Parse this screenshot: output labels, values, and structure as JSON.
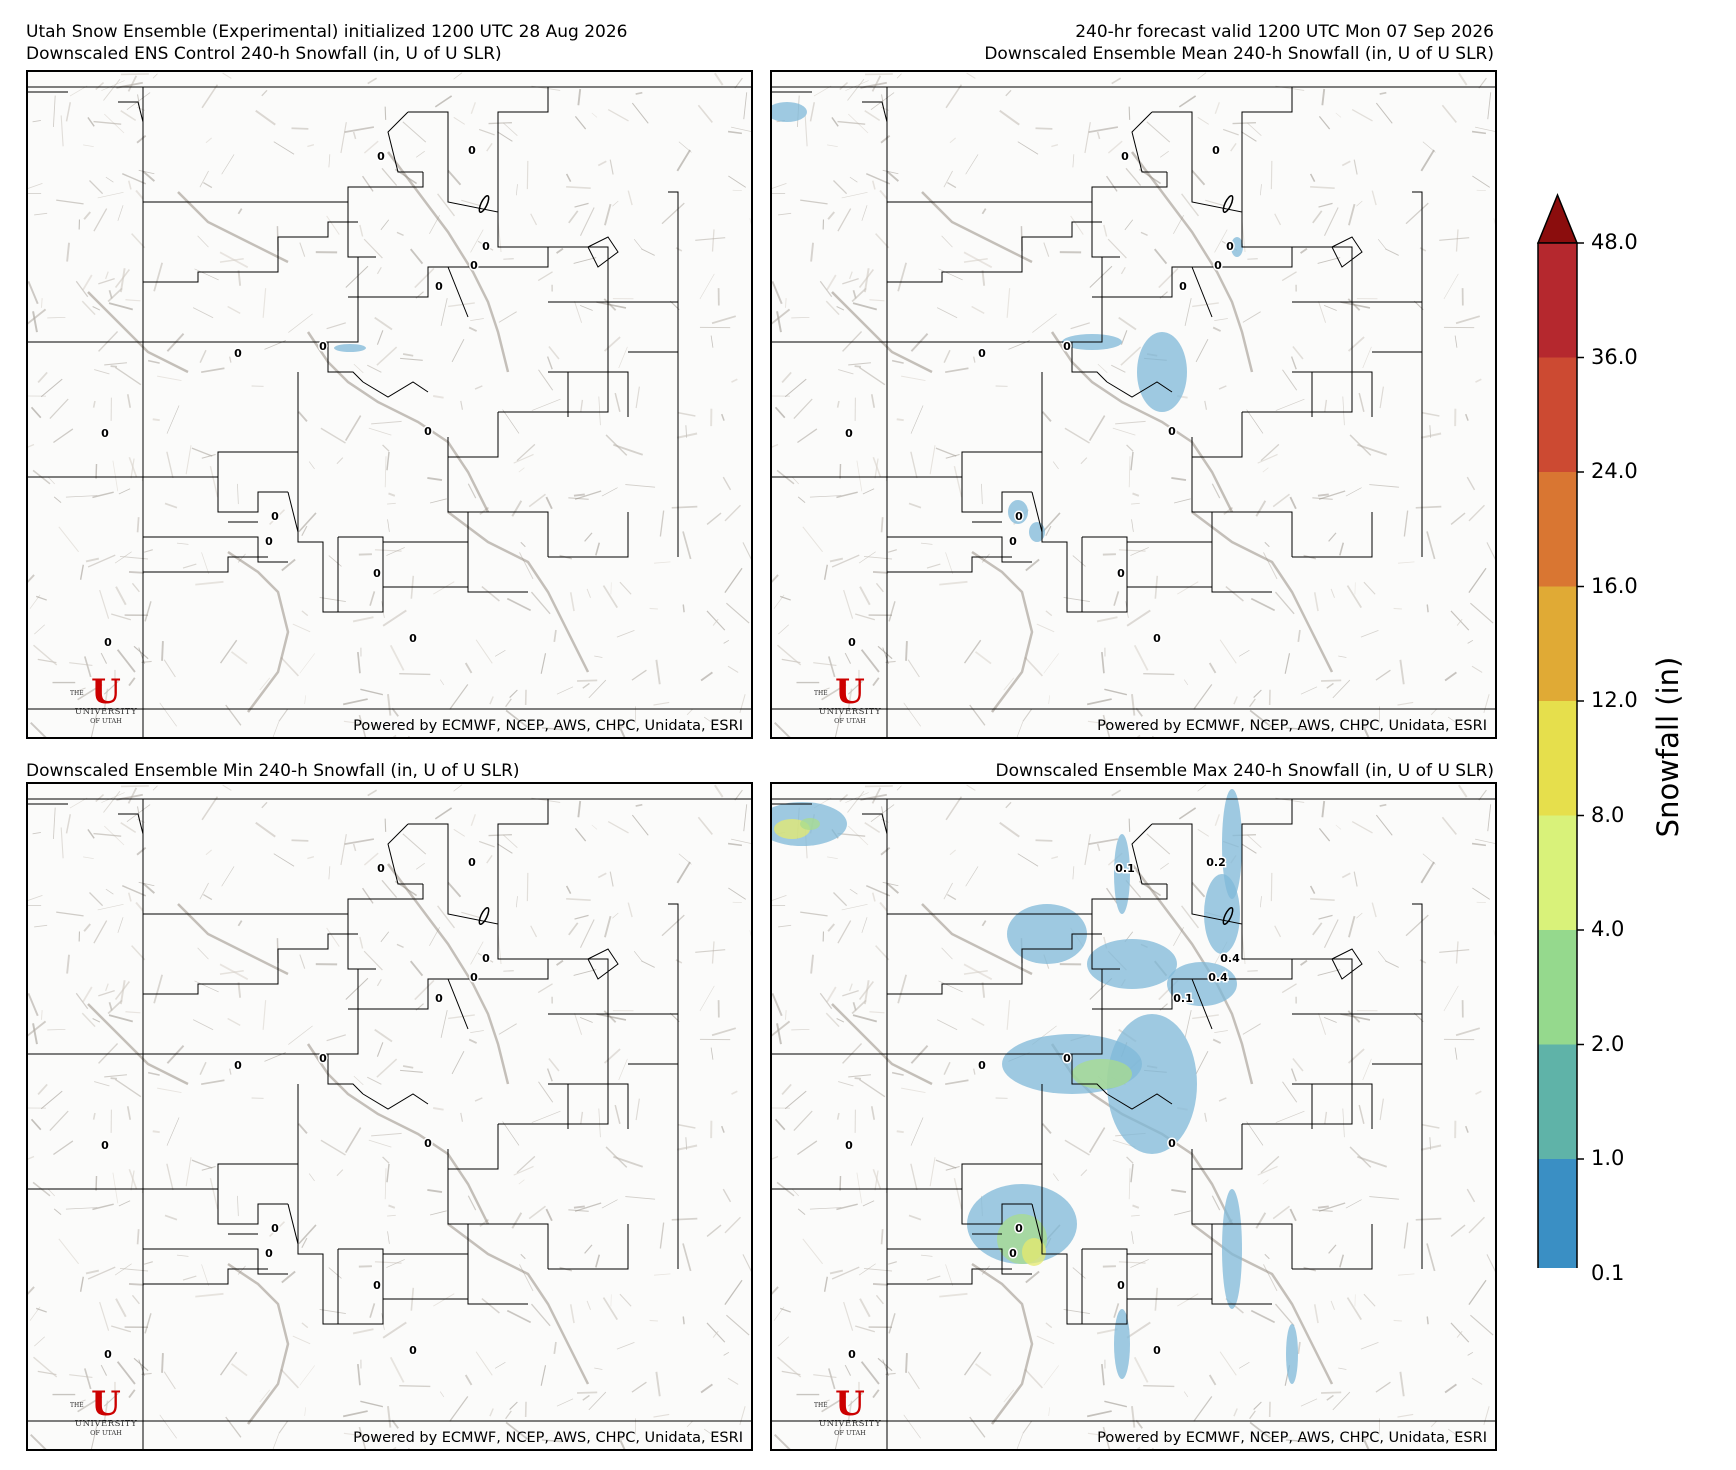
{
  "header": {
    "top_left_line1": "Utah Snow Ensemble (Experimental) initialized 1200 UTC 28 Aug 2026",
    "top_left_line2": "Downscaled ENS Control 240-h Snowfall (in, U of U SLR)",
    "top_right_line1": "240-hr forecast valid 1200 UTC Mon 07 Sep 2026",
    "top_right_line2": "Downscaled Ensemble Mean 240-h Snowfall (in, U of U SLR)",
    "bottom_left_title": "Downscaled Ensemble Min 240-h Snowfall (in, U of U SLR)",
    "bottom_right_title": "Downscaled Ensemble Max 240-h Snowfall (in, U of U SLR)"
  },
  "credit": "Powered by ECMWF, NCEP, AWS, CHPC, Unidata, ESRI",
  "logo": {
    "letter": "U",
    "the": "THE",
    "university": "UNIVERSITY",
    "of_utah": "OF UTAH"
  },
  "station_values": {
    "control": [
      "0",
      "0",
      "0",
      "0",
      "0",
      "0",
      "0",
      "0",
      "0",
      "0",
      "0",
      "0",
      "0",
      "0"
    ],
    "mean": [
      "0",
      "0",
      "0",
      "0",
      "0",
      "0",
      "0",
      "0",
      "0",
      "0",
      "0",
      "0",
      "0",
      "0"
    ],
    "min": [
      "0",
      "0",
      "0",
      "0",
      "0",
      "0",
      "0",
      "0",
      "0",
      "0",
      "0",
      "0",
      "0",
      "0"
    ],
    "max": [
      "0.1",
      "0.2",
      "0.4",
      "0.4",
      "0.1",
      "0",
      "0",
      "0",
      "0",
      "0",
      "0",
      "0",
      "0",
      "0"
    ]
  },
  "colorbar": {
    "title": "Snowfall (in)",
    "levels": [
      "0.1",
      "1.0",
      "2.0",
      "4.0",
      "8.0",
      "12.0",
      "16.0",
      "24.0",
      "36.0",
      "48.0"
    ],
    "colors": [
      "#3a8fc4",
      "#5fb3a8",
      "#95d98d",
      "#d9f27a",
      "#e6df4c",
      "#e0aa35",
      "#d97632",
      "#cc4a32",
      "#b5282e"
    ],
    "extend_color": "#8b0d0d"
  },
  "colors": {
    "snow_light": "#7fb8d8",
    "snow_green": "#a8dc8c",
    "snow_yellow": "#e6ea6c",
    "border": "#000000"
  }
}
